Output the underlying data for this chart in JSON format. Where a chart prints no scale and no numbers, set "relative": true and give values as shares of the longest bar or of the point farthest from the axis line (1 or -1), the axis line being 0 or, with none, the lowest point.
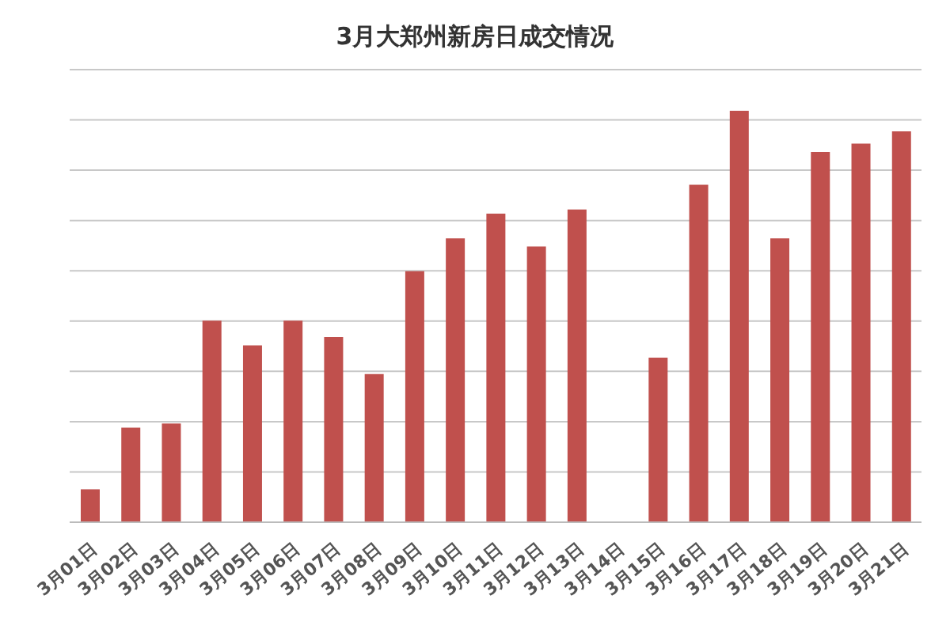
{
  "chart_data": {
    "type": "bar",
    "title": "3月大郑州新房日成交情况",
    "relative": true,
    "grid": "y",
    "color": "#c0504d",
    "categories": [
      "3月01日",
      "3月02日",
      "3月03日",
      "3月04日",
      "3月05日",
      "3月06日",
      "3月07日",
      "3月08日",
      "3月09日",
      "3月10日",
      "3月11日",
      "3月12日",
      "3月13日",
      "3月14日",
      "3月15日",
      "3月16日",
      "3月17日",
      "3月18日",
      "3月19日",
      "3月20日",
      "3月21日"
    ],
    "values": [
      0.08,
      0.23,
      0.24,
      0.49,
      0.43,
      0.49,
      0.45,
      0.36,
      0.61,
      0.69,
      0.75,
      0.67,
      0.76,
      0,
      0.4,
      0.82,
      1,
      0.69,
      0.9,
      0.92,
      0.95
    ]
  }
}
